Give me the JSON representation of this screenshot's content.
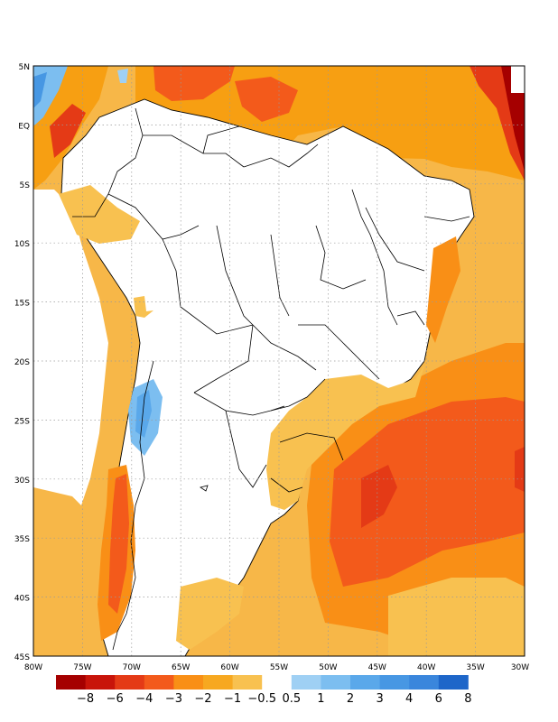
{
  "map": {
    "lon_range": [
      "80W",
      "30W"
    ],
    "lat_range": [
      "45S",
      "5N"
    ],
    "gridlines": "dotted",
    "lat_labels": [
      "5N",
      "EQ",
      "5S",
      "10S",
      "15S",
      "20S",
      "25S",
      "30S",
      "35S",
      "40S",
      "45S"
    ],
    "lon_labels": [
      "80W",
      "75W",
      "70W",
      "65W",
      "60W",
      "55W",
      "50W",
      "45W",
      "40W",
      "35W",
      "30W"
    ],
    "colors": {
      "ocean_base": "#f7b748",
      "land_base": "#ffffff",
      "borders": "#000000",
      "grid": "#9a9a9a"
    }
  },
  "colorbar": {
    "bins": [
      {
        "color": "#a50000"
      },
      {
        "color": "#c8140a"
      },
      {
        "color": "#e43a16"
      },
      {
        "color": "#f35a1b"
      },
      {
        "color": "#f98f16"
      },
      {
        "color": "#f7a820"
      },
      {
        "color": "#f8c150"
      },
      {
        "color": "#ffffff"
      },
      {
        "color": "#9fd0f4"
      },
      {
        "color": "#7cbef0"
      },
      {
        "color": "#5aa8ea"
      },
      {
        "color": "#4797e3"
      },
      {
        "color": "#3a86dc"
      },
      {
        "color": "#1e66c9"
      }
    ],
    "labels": [
      "−8",
      "−6",
      "−4",
      "−3",
      "−2",
      "−1",
      "−0.5",
      "0.5",
      "1",
      "2",
      "3",
      "4",
      "6",
      "8"
    ]
  }
}
